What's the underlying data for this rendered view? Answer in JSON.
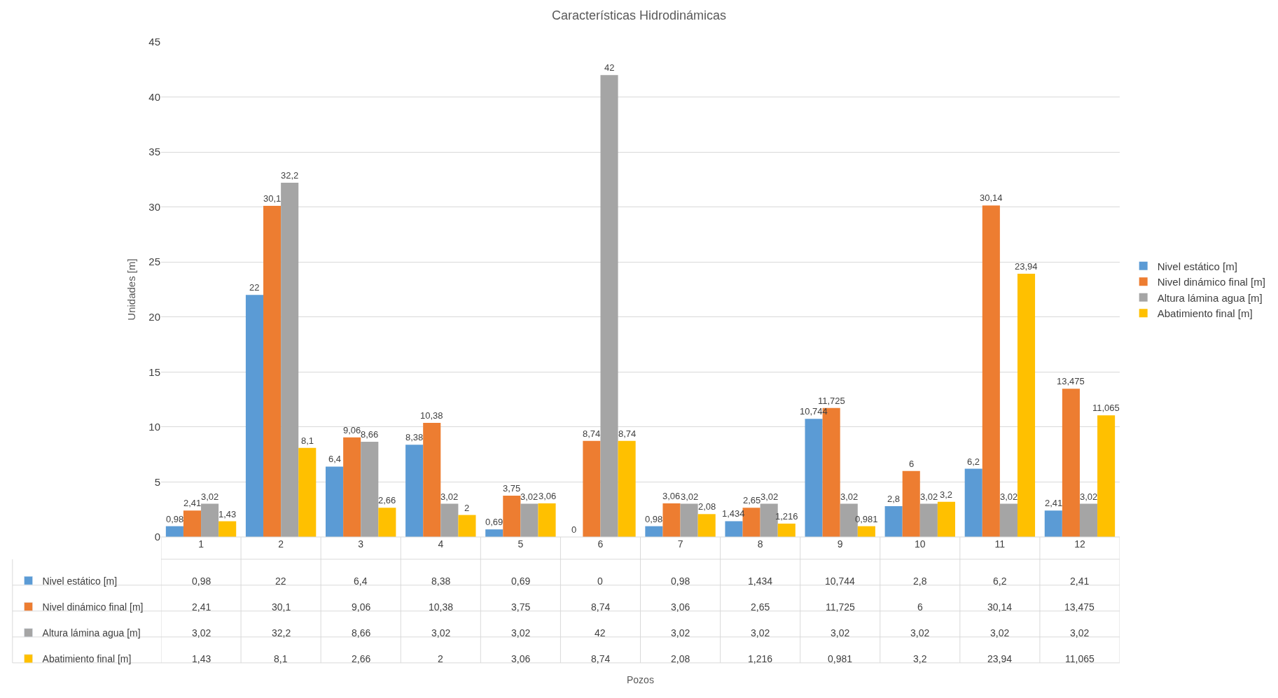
{
  "chart_data": {
    "type": "bar",
    "title": "Características Hidrodinámicas",
    "annotations": [
      "Pozos"
    ],
    "ylabel": "Unidades [m]",
    "categories": [
      "1",
      "2",
      "3",
      "4",
      "5",
      "6",
      "7",
      "8",
      "9",
      "10",
      "11",
      "12"
    ],
    "series": [
      {
        "name": "Nivel estático [m]",
        "color": "#5b9bd5",
        "values": [
          0.98,
          22,
          6.4,
          8.38,
          0.69,
          0,
          0.98,
          1.434,
          10.744,
          2.8,
          6.2,
          2.41
        ],
        "value_labels": [
          "0,98",
          "22",
          "6,4",
          "8,38",
          "0,69",
          "0",
          "0,98",
          "1,434",
          "10,744",
          "2,8",
          "6,2",
          "2,41"
        ]
      },
      {
        "name": "Nivel dinámico final [m]",
        "color": "#ed7d31",
        "values": [
          2.41,
          30.1,
          9.06,
          10.38,
          3.75,
          8.74,
          3.06,
          2.65,
          11.725,
          6,
          30.14,
          13.475
        ],
        "value_labels": [
          "2,41",
          "30,1",
          "9,06",
          "10,38",
          "3,75",
          "8,74",
          "3,06",
          "2,65",
          "11,725",
          "6",
          "30,14",
          "13,475"
        ]
      },
      {
        "name": "Altura lámina agua [m]",
        "color": "#a5a5a5",
        "values": [
          3.02,
          32.2,
          8.66,
          3.02,
          3.02,
          42,
          3.02,
          3.02,
          3.02,
          3.02,
          3.02,
          3.02
        ],
        "value_labels": [
          "3,02",
          "32,2",
          "8,66",
          "3,02",
          "3,02",
          "42",
          "3,02",
          "3,02",
          "3,02",
          "3,02",
          "3,02",
          "3,02"
        ]
      },
      {
        "name": "Abatimiento final [m]",
        "color": "#ffc000",
        "values": [
          1.43,
          8.1,
          2.66,
          2,
          3.06,
          8.74,
          2.08,
          1.216,
          0.981,
          3.2,
          23.94,
          11.065
        ],
        "value_labels": [
          "1,43",
          "8,1",
          "2,66",
          "2",
          "3,06",
          "8,74",
          "2,08",
          "1,216",
          "0,981",
          "3,2",
          "23,94",
          "11,065"
        ]
      }
    ],
    "ylim": [
      0,
      45
    ],
    "yticks": [
      0,
      5,
      10,
      15,
      20,
      25,
      30,
      35,
      40,
      45
    ],
    "grid": "y",
    "legend": "right"
  }
}
